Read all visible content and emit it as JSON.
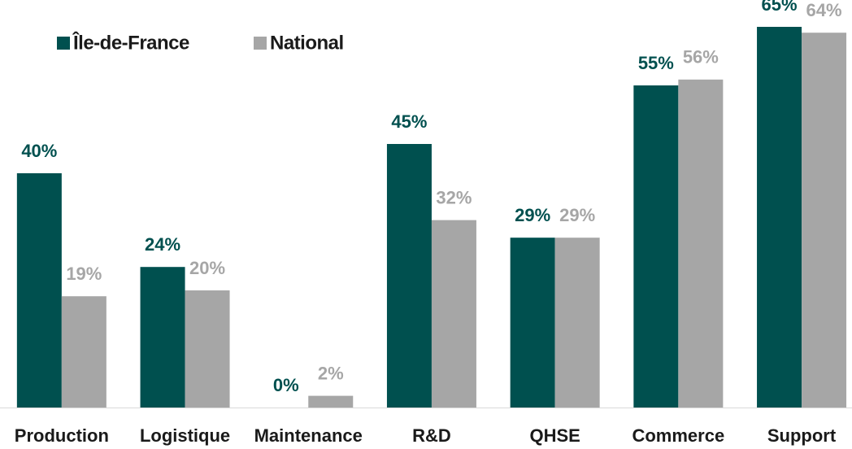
{
  "chart_data": {
    "type": "bar",
    "categories": [
      "Production",
      "Logistique",
      "Maintenance",
      "R&D",
      "QHSE",
      "Commerce",
      "Support"
    ],
    "series": [
      {
        "name": "Île-de-France",
        "color": "#00504f",
        "values": [
          40,
          24,
          0,
          45,
          29,
          55,
          65
        ],
        "value_labels": [
          "40%",
          "24%",
          "0%",
          "45%",
          "29%",
          "55%",
          "65%"
        ]
      },
      {
        "name": "National",
        "color": "#a6a6a6",
        "values": [
          19,
          20,
          2,
          32,
          29,
          56,
          64
        ],
        "value_labels": [
          "19%",
          "20%",
          "2%",
          "32%",
          "29%",
          "56%",
          "64%"
        ]
      }
    ]
  }
}
